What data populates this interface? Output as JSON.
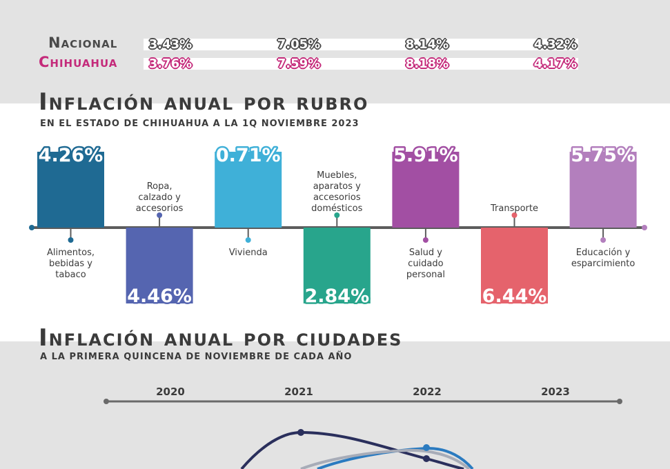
{
  "summary_rows": [
    {
      "label": "Nacional",
      "style": "nat",
      "values": [
        "3.43%",
        "7.05%",
        "8.14%",
        "4.32%"
      ]
    },
    {
      "label": "Chihuahua",
      "style": "chi",
      "values": [
        "3.76%",
        "7.59%",
        "8.18%",
        "4.17%"
      ]
    }
  ],
  "section_rubro": {
    "title": "Inflación anual por rubro",
    "subtitle": "EN EL ESTADO DE CHIHUAHUA A LA 1Q NOVIEMBRE 2023"
  },
  "section_ciudades": {
    "title": "Inflación anual por ciudades",
    "subtitle": "A LA PRIMERA QUINCENA DE NOVIEMBRE DE CADA AÑO"
  },
  "chart_data": [
    {
      "type": "bar",
      "title": "Inflación anual por rubro",
      "subtitle": "EN EL ESTADO DE CHIHUAHUA A LA 1Q NOVIEMBRE 2023",
      "categories": [
        {
          "label": [
            "Alimentos,",
            "bebidas y",
            "tabaco"
          ],
          "value": 4.26,
          "display": "4.26%",
          "color": "#1f6a93",
          "direction": "up"
        },
        {
          "label": [
            "Ropa,",
            "calzado y",
            "accesorios"
          ],
          "value": 4.46,
          "display": "4.46%",
          "color": "#5565b0",
          "direction": "down"
        },
        {
          "label": [
            "Vivienda"
          ],
          "value": 0.71,
          "display": "0.71%",
          "color": "#3fb0d8",
          "direction": "up"
        },
        {
          "label": [
            "Muebles,",
            "aparatos y",
            "accesorios",
            "domésticos"
          ],
          "value": 2.84,
          "display": "2.84%",
          "color": "#28a58c",
          "direction": "down"
        },
        {
          "label": [
            "Salud y",
            "cuidado",
            "personal"
          ],
          "value": 5.91,
          "display": "5.91%",
          "color": "#a24fa3",
          "direction": "up"
        },
        {
          "label": [
            "Transporte"
          ],
          "value": 6.44,
          "display": "6.44%",
          "color": "#e5636c",
          "direction": "down"
        },
        {
          "label": [
            "Educación y",
            "esparcimiento"
          ],
          "value": 5.75,
          "display": "5.75%",
          "color": "#b37fbd",
          "direction": "up"
        }
      ]
    },
    {
      "type": "line",
      "title": "Inflación anual por ciudades",
      "subtitle": "A LA PRIMERA QUINCENA DE NOVIEMBRE DE CADA AÑO",
      "x": [
        "2020",
        "2021",
        "2022",
        "2023"
      ],
      "series_colors": [
        "#2a2f5c",
        "#2b7bc0",
        "#a7acb8"
      ]
    }
  ]
}
